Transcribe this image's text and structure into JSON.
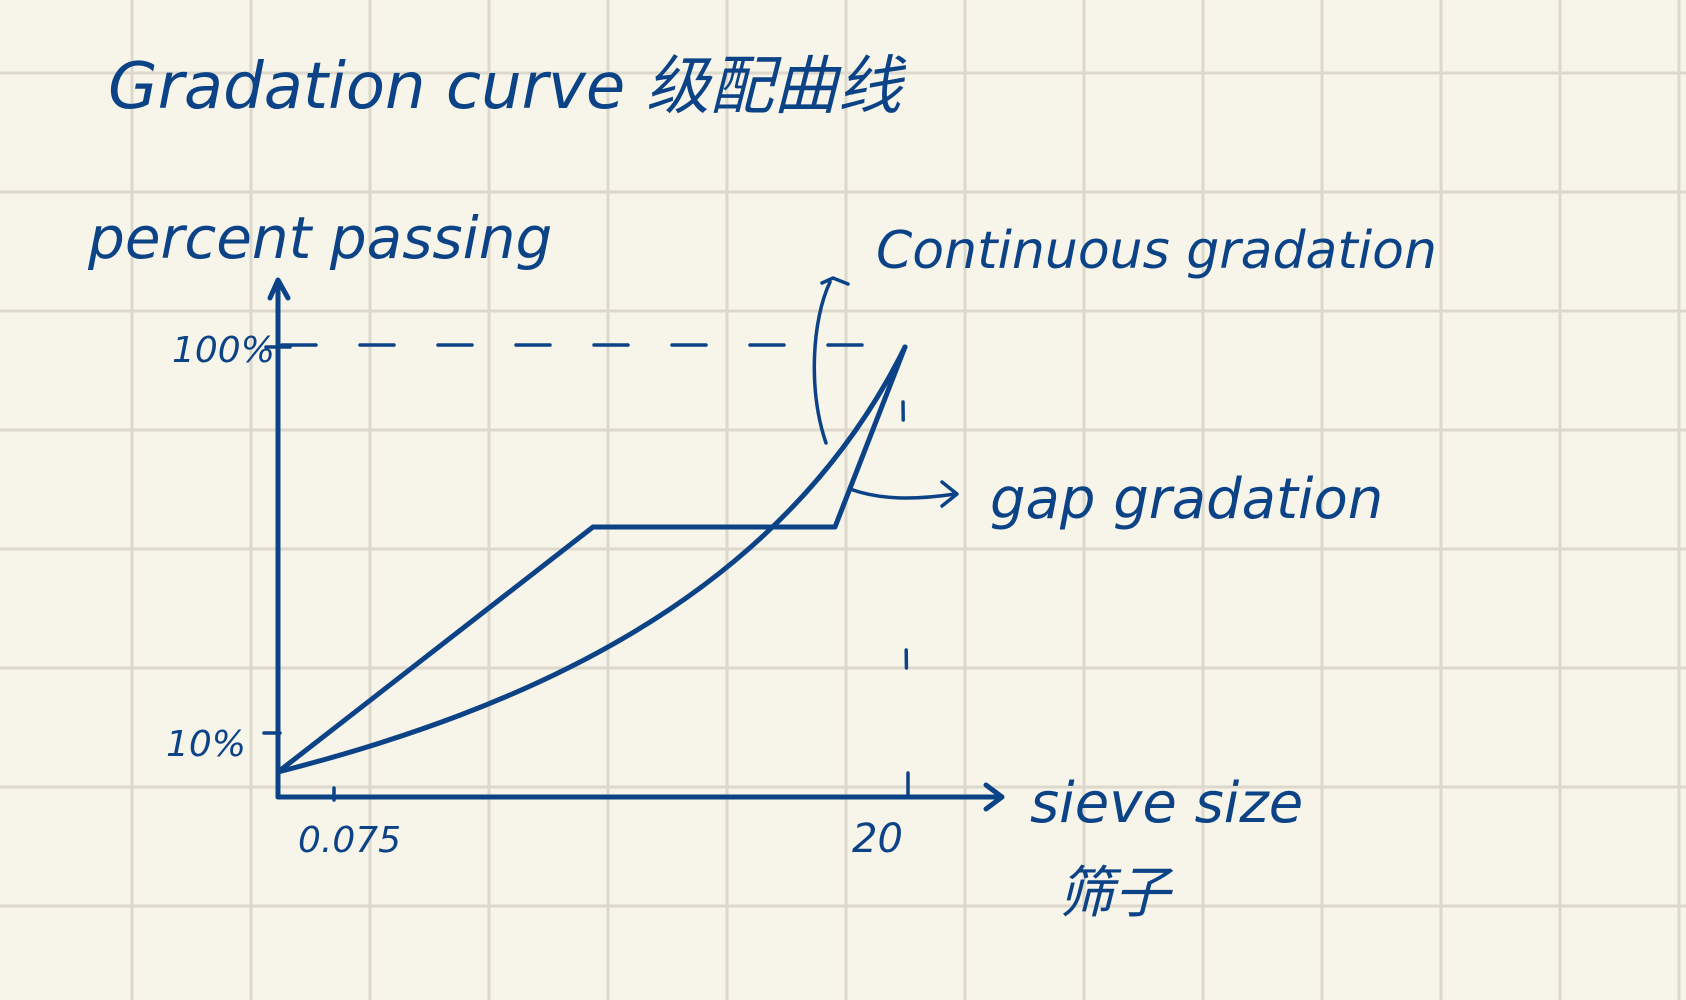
{
  "title": "Gradation curve 级配曲线",
  "ylabel": "percent passing",
  "xlabel": "sieve size",
  "xlabel_cn": "筛子",
  "y_ticks": [
    "100%",
    "10%"
  ],
  "x_ticks": [
    "0.075",
    "20"
  ],
  "annotations": {
    "continuous": "Continuous gradation",
    "gap": "gap gradation"
  },
  "colors": {
    "ink": "#0c4387",
    "paper": "#f7f4e9",
    "grid": "#dcd9cc"
  }
}
